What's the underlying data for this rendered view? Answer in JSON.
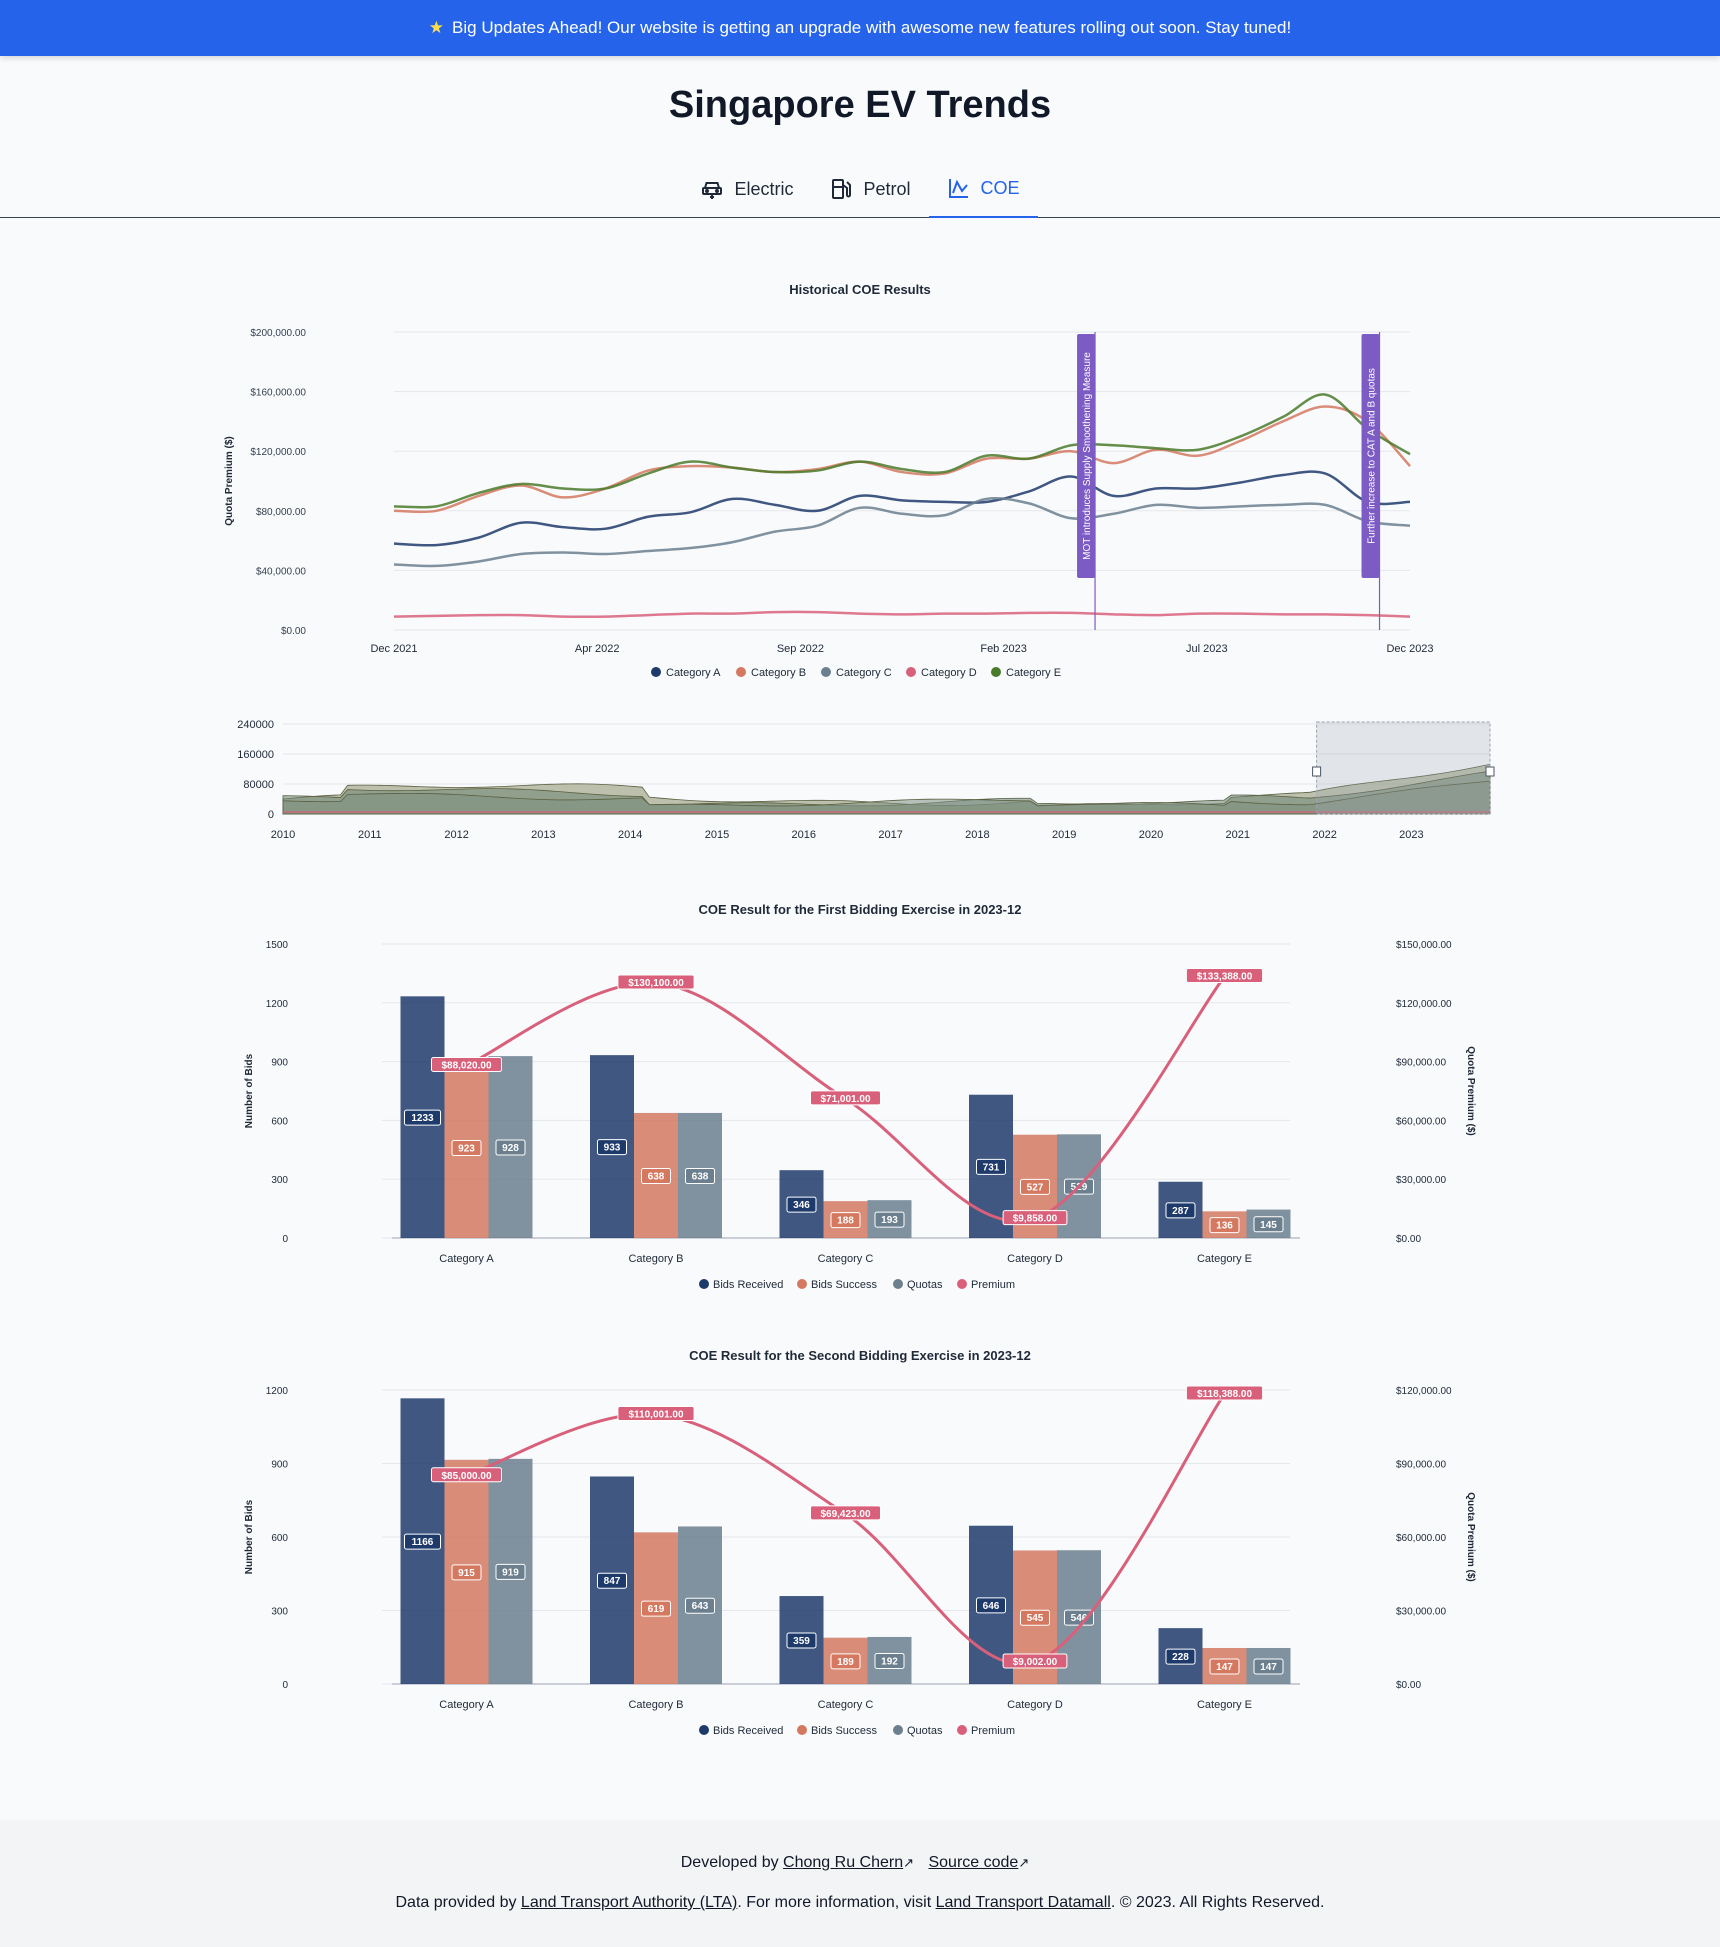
{
  "banner": {
    "icon": "star-icon",
    "text": "Big Updates Ahead! Our website is getting an upgrade with awesome new features rolling out soon. Stay tuned!"
  },
  "page_title": "Singapore EV Trends",
  "tabs": [
    {
      "label": "Electric",
      "icon": "car-icon"
    },
    {
      "label": "Petrol",
      "icon": "fuel-pump-icon"
    },
    {
      "label": "COE",
      "icon": "chart-line-icon",
      "active": true
    }
  ],
  "colors": {
    "A": "#1e3a6b",
    "B": "#d4785f",
    "C": "#6b7f8e",
    "D": "#d9607a",
    "E": "#4a7a2a",
    "annotation": "#7c5cc4",
    "accent": "#2563eb"
  },
  "chart_data": [
    {
      "type": "line",
      "title": "Historical COE Results",
      "ylabel": "Quota Premium ($)",
      "xlabel": "",
      "ylim": [
        0,
        200000
      ],
      "yticks": [
        "$0.00",
        "$40,000.00",
        "$80,000.00",
        "$120,000.00",
        "$160,000.00",
        "$200,000.00"
      ],
      "xticks": [
        "Dec 2021",
        "Apr 2022",
        "Sep 2022",
        "Feb 2023",
        "Jul 2023",
        "Dec 2023"
      ],
      "legend": "bottom",
      "annotations": [
        {
          "label": "MOT introduces Supply Smoothening Measure",
          "x": 34.5
        },
        {
          "label": "Further increase to CAT A and B quotas",
          "x": 48.5
        }
      ],
      "x_range": [
        0,
        50
      ],
      "series": [
        {
          "name": "Category A",
          "values": [
            58000,
            57000,
            62000,
            72000,
            69000,
            68000,
            76000,
            79000,
            88000,
            84000,
            80000,
            90000,
            87000,
            86000,
            86000,
            93000,
            103000,
            90000,
            95000,
            95000,
            99000,
            104000,
            105000,
            86000,
            86000
          ]
        },
        {
          "name": "Category B",
          "values": [
            80000,
            80000,
            90000,
            97000,
            89000,
            95000,
            107000,
            110000,
            109000,
            106000,
            108000,
            113000,
            106000,
            105000,
            115000,
            115000,
            120000,
            112000,
            121000,
            117000,
            127000,
            140000,
            150000,
            140000,
            110000
          ]
        },
        {
          "name": "Category C",
          "values": [
            44000,
            43000,
            46000,
            51000,
            52000,
            51000,
            53000,
            55000,
            59000,
            66000,
            70000,
            82000,
            78000,
            77000,
            88000,
            85000,
            75000,
            78000,
            84000,
            82000,
            83000,
            84000,
            84000,
            73000,
            70000
          ]
        },
        {
          "name": "Category D",
          "values": [
            9000,
            9500,
            10000,
            10000,
            9000,
            9000,
            10000,
            11000,
            11000,
            12000,
            12000,
            11000,
            10500,
            11000,
            11000,
            11500,
            11500,
            10500,
            10000,
            11000,
            11000,
            10500,
            10500,
            10000,
            9000
          ]
        },
        {
          "name": "Category E",
          "values": [
            83000,
            83000,
            92000,
            98000,
            95000,
            95000,
            105000,
            113000,
            109000,
            106000,
            107000,
            113000,
            108000,
            106000,
            117000,
            115000,
            124000,
            124000,
            122000,
            121000,
            130000,
            143000,
            158000,
            135000,
            118000
          ]
        }
      ]
    },
    {
      "type": "area",
      "title": "",
      "ylim": [
        0,
        240000
      ],
      "yticks": [
        "0",
        "80000",
        "160000",
        "240000"
      ],
      "xticks": [
        "2010",
        "2011",
        "2012",
        "2013",
        "2014",
        "2015",
        "2016",
        "2017",
        "2018",
        "2019",
        "2020",
        "2021",
        "2022",
        "2023"
      ],
      "selection": [
        "2022",
        "2023"
      ]
    },
    {
      "type": "bar",
      "title": "COE Result for the First Bidding Exercise in 2023-12",
      "ylabel": "Number of Bids",
      "y2label": "Quota Premium ($)",
      "ylim": [
        0,
        1500
      ],
      "y2lim": [
        0,
        150000
      ],
      "yticks": [
        "0",
        "300",
        "600",
        "900",
        "1200",
        "1500"
      ],
      "y2ticks": [
        "$0.00",
        "$30,000.00",
        "$60,000.00",
        "$90,000.00",
        "$120,000.00",
        "$150,000.00"
      ],
      "categories": [
        "Category A",
        "Category B",
        "Category C",
        "Category D",
        "Category E"
      ],
      "series": [
        {
          "name": "Bids Received",
          "values": [
            1233,
            933,
            346,
            731,
            287
          ]
        },
        {
          "name": "Bids Success",
          "values": [
            923,
            638,
            188,
            527,
            136
          ]
        },
        {
          "name": "Quotas",
          "values": [
            928,
            638,
            193,
            529,
            145
          ]
        }
      ],
      "premium": {
        "name": "Premium",
        "values": [
          88020,
          130100,
          71001,
          9858,
          133388
        ],
        "labels": [
          "$88,020.00",
          "$130,100.00",
          "$71,001.00",
          "$9,858.00",
          "$133,388.00"
        ]
      }
    },
    {
      "type": "bar",
      "title": "COE Result for the Second Bidding Exercise in 2023-12",
      "ylabel": "Number of Bids",
      "y2label": "Quota Premium ($)",
      "ylim": [
        0,
        1200
      ],
      "y2lim": [
        0,
        120000
      ],
      "yticks": [
        "0",
        "300",
        "600",
        "900",
        "1200"
      ],
      "y2ticks": [
        "$0.00",
        "$30,000.00",
        "$60,000.00",
        "$90,000.00",
        "$120,000.00"
      ],
      "categories": [
        "Category A",
        "Category B",
        "Category C",
        "Category D",
        "Category E"
      ],
      "series": [
        {
          "name": "Bids Received",
          "values": [
            1166,
            847,
            359,
            646,
            228
          ]
        },
        {
          "name": "Bids Success",
          "values": [
            915,
            619,
            189,
            545,
            147
          ]
        },
        {
          "name": "Quotas",
          "values": [
            919,
            643,
            192,
            546,
            147
          ]
        }
      ],
      "premium": {
        "name": "Premium",
        "values": [
          85000,
          110001,
          69423,
          9002,
          118388
        ],
        "labels": [
          "$85,000.00",
          "$110,001.00",
          "$69,423.00",
          "$9,002.00",
          "$118,388.00"
        ]
      }
    }
  ],
  "footer": {
    "developed_by": "Developed by",
    "author": "Chong Ru Chern",
    "source_code": "Source code",
    "data_by": "Data provided by",
    "lta": "Land Transport Authority (LTA)",
    "more_info": ". For more information, visit",
    "datamall": "Land Transport Datamall",
    "copyright": ". © 2023. All Rights Reserved."
  }
}
